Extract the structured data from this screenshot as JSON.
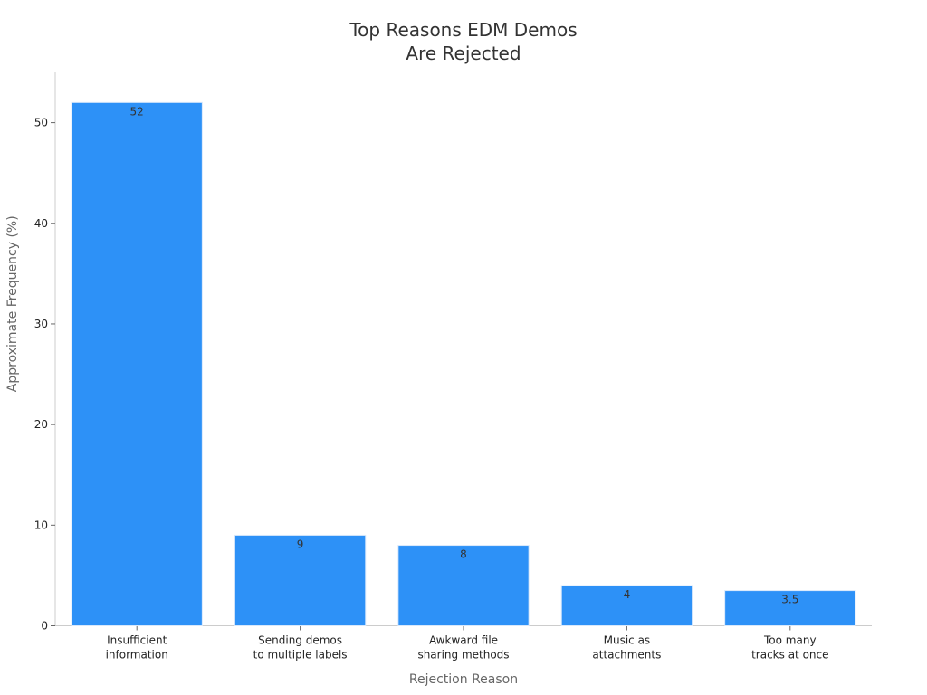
{
  "chart_data": {
    "type": "bar",
    "title_lines": [
      "Top Reasons EDM Demos",
      "Are Rejected"
    ],
    "xlabel": "Rejection Reason",
    "ylabel": "Approximate Frequency (%)",
    "categories": [
      [
        "Insufficient",
        "information"
      ],
      [
        "Sending demos",
        "to multiple labels"
      ],
      [
        "Awkward file",
        "sharing methods"
      ],
      [
        "Music as",
        "attachments"
      ],
      [
        "Too many",
        "tracks at once"
      ]
    ],
    "values": [
      52,
      9,
      8,
      4,
      3.5
    ],
    "data_labels": [
      "52",
      "9",
      "8",
      "4",
      "3.5"
    ],
    "ylim": [
      0,
      55
    ],
    "yticks": [
      0,
      10,
      20,
      30,
      40,
      50
    ],
    "grid": false,
    "colors": {
      "bar": "#2d91f7",
      "bar_edge": "#d8e8fb",
      "axis": "#cccccc",
      "tick_text": "#222222",
      "axis_label": "#666666",
      "title": "#333333",
      "data_label": "#333333"
    }
  }
}
